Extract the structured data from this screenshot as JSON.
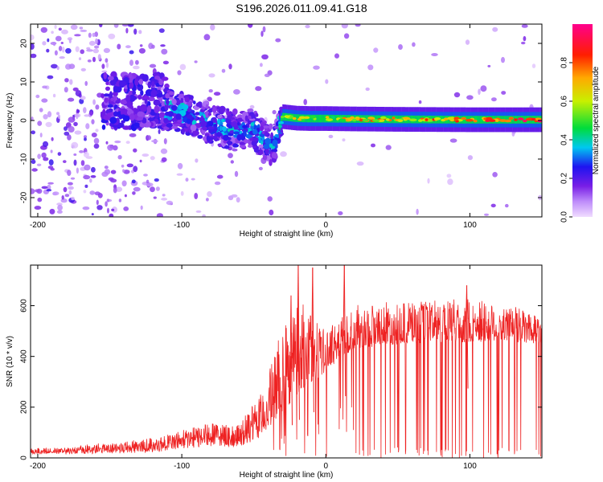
{
  "title": "S196.2026.011.09.41.G18",
  "chart_data": [
    {
      "type": "heatmap",
      "xlabel": "Height of straight line (km)",
      "ylabel": "Frequency (Hz)",
      "xlim": [
        -205,
        150
      ],
      "ylim": [
        -25,
        25
      ],
      "xticks": [
        -200,
        -100,
        0,
        100
      ],
      "yticks": [
        -20,
        -10,
        0,
        10,
        20
      ],
      "colorbar": {
        "label": "Normalized spectral amplitude",
        "range": [
          0.0,
          1.0
        ],
        "ticks": [
          0.0,
          0.2,
          0.4,
          0.6,
          0.8
        ],
        "colormap": "rainbow"
      },
      "ridge": {
        "description": "dominant frequency track vs height",
        "x": [
          -112,
          -100,
          -90,
          -80,
          -70,
          -60,
          -50,
          -40,
          -35,
          -30,
          -20,
          -10,
          0,
          20,
          50,
          100,
          150
        ],
        "freq": [
          3,
          2,
          1,
          -1,
          -2,
          -3,
          -2,
          -7,
          -5,
          1,
          0.6,
          0.5,
          0.5,
          0.4,
          0.3,
          0.2,
          0.2
        ],
        "amplitude": [
          0.25,
          0.25,
          0.22,
          0.22,
          0.22,
          0.2,
          0.2,
          0.2,
          0.3,
          0.5,
          0.55,
          0.5,
          0.5,
          0.6,
          0.6,
          0.7,
          0.8
        ]
      }
    },
    {
      "type": "line",
      "xlabel": "Height of straight line (km)",
      "ylabel": "SNR (10 * v/v)",
      "xlim": [
        -205,
        150
      ],
      "ylim": [
        0,
        760
      ],
      "xticks": [
        -200,
        -100,
        0,
        100
      ],
      "yticks": [
        0,
        200,
        400,
        600
      ],
      "series_color": "#ee2222",
      "envelope": {
        "x": [
          -205,
          -180,
          -150,
          -120,
          -100,
          -80,
          -60,
          -45,
          -40,
          -30,
          -20,
          -10,
          0,
          10,
          20,
          30,
          50,
          80,
          100,
          130,
          150
        ],
        "base": [
          15,
          18,
          20,
          25,
          40,
          50,
          45,
          80,
          120,
          180,
          250,
          300,
          340,
          400,
          430,
          440,
          450,
          460,
          455,
          460,
          450
        ],
        "peak": [
          35,
          40,
          60,
          80,
          110,
          140,
          130,
          250,
          330,
          520,
          640,
          560,
          500,
          560,
          600,
          610,
          620,
          620,
          630,
          600,
          580
        ]
      },
      "spikes": [
        {
          "x": -25,
          "y": 640
        },
        {
          "x": -20,
          "y": 760
        },
        {
          "x": -10,
          "y": 750
        },
        {
          "x": 12,
          "y": 760
        },
        {
          "x": 97,
          "y": 680
        }
      ]
    }
  ]
}
